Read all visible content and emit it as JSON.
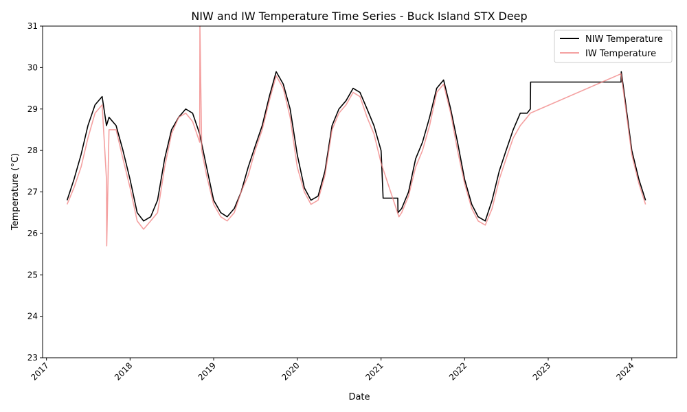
{
  "chart_data": {
    "type": "line",
    "title": "NIW and IW Temperature Time Series - Buck Island STX Deep",
    "xlabel": "Date",
    "ylabel": "Temperature (°C)",
    "xlim": [
      "2016-12-15",
      "2024-07-15"
    ],
    "ylim": [
      23,
      31
    ],
    "x_ticks": [
      "2017",
      "2018",
      "2019",
      "2020",
      "2021",
      "2022",
      "2023",
      "2024"
    ],
    "y_ticks": [
      23,
      24,
      25,
      26,
      27,
      28,
      29,
      30,
      31
    ],
    "grid": false,
    "legend_position": "top-right",
    "series": [
      {
        "name": "NIW Temperature",
        "color": "#000000",
        "line_style": "solid",
        "x": [
          "2017-04-01",
          "2017-05-01",
          "2017-06-01",
          "2017-07-01",
          "2017-08-01",
          "2017-09-01",
          "2017-09-20",
          "2017-10-01",
          "2017-11-01",
          "2017-12-01",
          "2018-01-01",
          "2018-02-01",
          "2018-03-01",
          "2018-04-01",
          "2018-05-01",
          "2018-06-01",
          "2018-07-01",
          "2018-08-01",
          "2018-09-01",
          "2018-10-01",
          "2018-11-01",
          "2018-12-01",
          "2019-01-01",
          "2019-02-01",
          "2019-03-01",
          "2019-04-01",
          "2019-05-01",
          "2019-06-01",
          "2019-07-01",
          "2019-08-01",
          "2019-09-01",
          "2019-10-01",
          "2019-11-01",
          "2019-12-01",
          "2020-01-01",
          "2020-02-01",
          "2020-03-01",
          "2020-04-01",
          "2020-05-01",
          "2020-06-01",
          "2020-07-01",
          "2020-08-01",
          "2020-09-01",
          "2020-10-01",
          "2020-11-01",
          "2020-12-01",
          "2021-01-01",
          "2021-01-02",
          "2021-01-10",
          "2021-03-15",
          "2021-03-16",
          "2021-04-01",
          "2021-05-01",
          "2021-06-01",
          "2021-07-01",
          "2021-08-01",
          "2021-09-01",
          "2021-10-01",
          "2021-11-01",
          "2021-12-01",
          "2022-01-01",
          "2022-02-01",
          "2022-03-01",
          "2022-04-01",
          "2022-05-01",
          "2022-06-01",
          "2022-07-01",
          "2022-08-01",
          "2022-09-01",
          "2022-10-01",
          "2022-10-15",
          "2022-10-16",
          "2023-11-15",
          "2023-11-16",
          "2023-12-01",
          "2024-01-01",
          "2024-02-01",
          "2024-03-01"
        ],
        "y": [
          26.8,
          27.3,
          27.9,
          28.6,
          29.1,
          29.3,
          28.6,
          28.8,
          28.6,
          28.0,
          27.3,
          26.5,
          26.3,
          26.4,
          26.8,
          27.8,
          28.5,
          28.8,
          29.0,
          28.9,
          28.4,
          27.6,
          26.8,
          26.5,
          26.4,
          26.6,
          27.0,
          27.6,
          28.1,
          28.6,
          29.3,
          29.9,
          29.6,
          29.0,
          27.9,
          27.1,
          26.8,
          26.9,
          27.5,
          28.6,
          29.0,
          29.2,
          29.5,
          29.4,
          29.0,
          28.6,
          28.0,
          27.9,
          26.85,
          26.85,
          26.5,
          26.6,
          27.0,
          27.8,
          28.2,
          28.8,
          29.5,
          29.7,
          29.0,
          28.2,
          27.3,
          26.7,
          26.4,
          26.3,
          26.8,
          27.5,
          28.0,
          28.5,
          28.9,
          28.9,
          29.0,
          29.65,
          29.65,
          29.9,
          29.3,
          28.0,
          27.3,
          26.8
        ]
      },
      {
        "name": "IW Temperature",
        "color": "#f08080",
        "line_style": "solid",
        "x": [
          "2017-04-01",
          "2017-05-01",
          "2017-06-01",
          "2017-07-01",
          "2017-08-01",
          "2017-09-01",
          "2017-09-20",
          "2017-09-21",
          "2017-10-01",
          "2017-11-01",
          "2017-12-01",
          "2018-01-01",
          "2018-02-01",
          "2018-03-01",
          "2018-04-01",
          "2018-05-01",
          "2018-06-01",
          "2018-07-01",
          "2018-08-01",
          "2018-09-01",
          "2018-10-01",
          "2018-11-01",
          "2018-11-02",
          "2018-11-10",
          "2018-12-01",
          "2019-01-01",
          "2019-02-01",
          "2019-03-01",
          "2019-04-01",
          "2019-05-01",
          "2019-06-01",
          "2019-07-01",
          "2019-08-01",
          "2019-09-01",
          "2019-10-01",
          "2019-11-01",
          "2019-12-01",
          "2020-01-01",
          "2020-02-01",
          "2020-03-01",
          "2020-04-01",
          "2020-05-01",
          "2020-06-01",
          "2020-07-01",
          "2020-08-01",
          "2020-09-01",
          "2020-10-01",
          "2020-11-01",
          "2020-12-01",
          "2021-01-01",
          "2021-03-20",
          "2021-04-01",
          "2021-05-01",
          "2021-06-01",
          "2021-07-01",
          "2021-08-01",
          "2021-09-01",
          "2021-10-01",
          "2021-11-01",
          "2021-12-01",
          "2022-01-01",
          "2022-02-01",
          "2022-03-01",
          "2022-04-01",
          "2022-05-01",
          "2022-06-01",
          "2022-07-01",
          "2022-08-01",
          "2022-09-01",
          "2022-10-01",
          "2022-10-15",
          "2023-11-15",
          "2023-12-01",
          "2024-01-01",
          "2024-02-01",
          "2024-03-01"
        ],
        "y": [
          26.7,
          27.1,
          27.6,
          28.3,
          28.9,
          29.1,
          27.3,
          25.7,
          28.5,
          28.5,
          27.8,
          27.1,
          26.3,
          26.1,
          26.3,
          26.5,
          27.6,
          28.4,
          28.8,
          28.9,
          28.7,
          28.2,
          31.0,
          28.0,
          27.4,
          26.7,
          26.4,
          26.3,
          26.5,
          27.0,
          27.4,
          28.0,
          28.5,
          29.2,
          29.8,
          29.5,
          28.8,
          27.6,
          27.0,
          26.7,
          26.8,
          27.4,
          28.5,
          28.9,
          29.1,
          29.4,
          29.3,
          28.8,
          28.4,
          27.7,
          26.4,
          26.5,
          26.9,
          27.6,
          28.0,
          28.6,
          29.4,
          29.6,
          28.9,
          28.0,
          27.2,
          26.6,
          26.3,
          26.2,
          26.6,
          27.3,
          27.8,
          28.3,
          28.6,
          28.8,
          28.9,
          29.85,
          29.2,
          27.9,
          27.2,
          26.7
        ]
      }
    ]
  }
}
